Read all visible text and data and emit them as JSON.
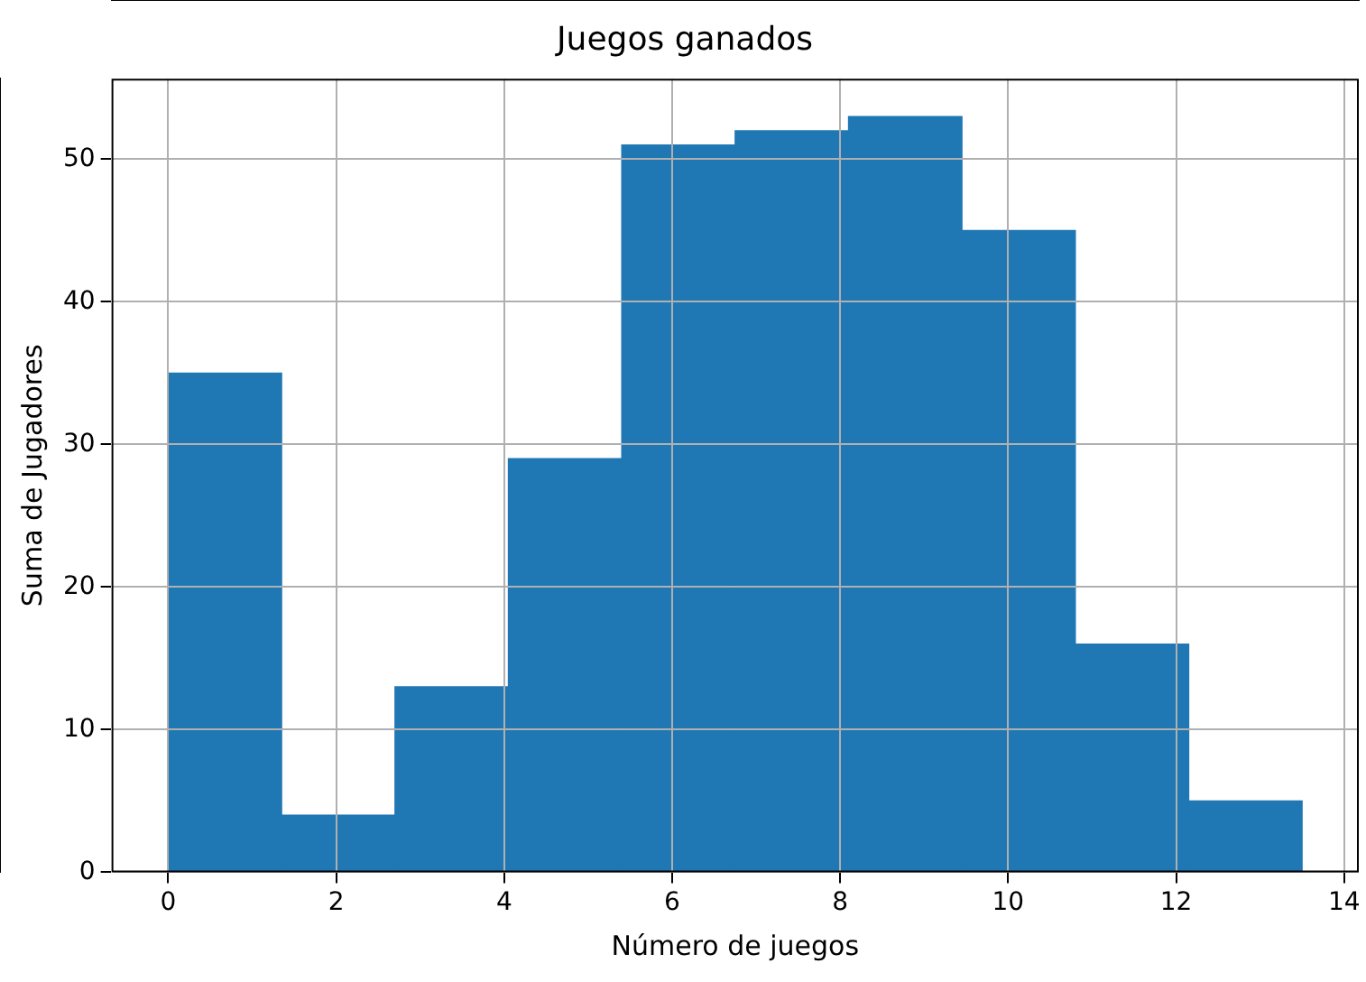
{
  "chart_data": {
    "type": "histogram",
    "title": "Juegos ganados",
    "xlabel": "Número de juegos",
    "ylabel": "Suma de Jugadores",
    "bins": [
      0,
      1.35,
      2.7,
      4.05,
      5.4,
      6.75,
      8.1,
      9.45,
      10.8,
      12.15,
      13.5
    ],
    "values": [
      35,
      4,
      13,
      29,
      51,
      52,
      53,
      45,
      16,
      5
    ],
    "color": "#1f77b4",
    "xlim": [
      -0.675,
      14.175
    ],
    "xticks": [
      0,
      2,
      4,
      6,
      8,
      10,
      12,
      14
    ],
    "ylim": [
      0,
      55.65
    ],
    "yticks": [
      0,
      10,
      20,
      30,
      40,
      50
    ],
    "grid": true
  }
}
